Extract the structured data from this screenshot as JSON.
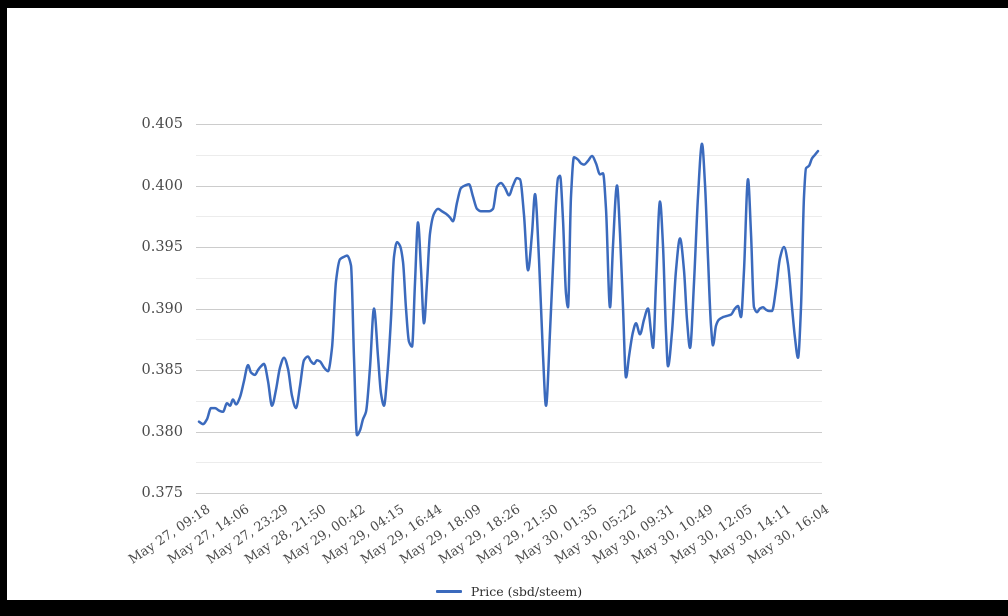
{
  "chart": {
    "y_axis_labels": [
      "0.405",
      "0.400",
      "0.395",
      "0.390",
      "0.385",
      "0.380",
      "0.375"
    ],
    "x_axis_labels": [
      "May 27, 09:18",
      "May 27, 14:06",
      "May 27, 23:29",
      "May 28, 21:50",
      "May 29, 00:42",
      "May 29, 04:15",
      "May 29, 16:44",
      "May 29, 18:09",
      "May 29, 18:26",
      "May 29, 21:50",
      "May 30, 01:35",
      "May 30, 05:22",
      "May 30, 09:31",
      "May 30, 10:49",
      "May 30, 12:05",
      "May 30, 14:11",
      "May 30, 16:04"
    ],
    "legend": {
      "label": "Price (sbd/steem)"
    },
    "colors": {
      "line": "#3b6abd",
      "grid_major": "#cccccc",
      "grid_minor": "#ececec",
      "axis_text": "#4a4a4a",
      "legend_text": "#2e2e2e",
      "frame": "#000000",
      "background": "#ffffff"
    }
  },
  "chart_data": {
    "type": "line",
    "title": "",
    "xlabel": "",
    "ylabel": "",
    "ylim": [
      0.375,
      0.405
    ],
    "y_ticks": [
      0.375,
      0.3775,
      0.38,
      0.3825,
      0.385,
      0.3875,
      0.39,
      0.3925,
      0.395,
      0.3975,
      0.4,
      0.4025,
      0.405
    ],
    "grid": "horizontal, major+minor",
    "legend_position": "bottom-center",
    "x_tick_labels": [
      "May 27, 09:18",
      "May 27, 14:06",
      "May 27, 23:29",
      "May 28, 21:50",
      "May 29, 00:42",
      "May 29, 04:15",
      "May 29, 16:44",
      "May 29, 18:09",
      "May 29, 18:26",
      "May 29, 21:50",
      "May 30, 01:35",
      "May 30, 05:22",
      "May 30, 09:31",
      "May 30, 10:49",
      "May 30, 12:05",
      "May 30, 14:11",
      "May 30, 16:04"
    ],
    "series": [
      {
        "name": "Price (sbd/steem)",
        "color": "#3b6abd",
        "points": [
          [
            199,
            0.3808
          ],
          [
            203,
            0.3806
          ],
          [
            207,
            0.381
          ],
          [
            211,
            0.3819
          ],
          [
            215,
            0.3819
          ],
          [
            219,
            0.3817
          ],
          [
            223,
            0.3816
          ],
          [
            227,
            0.3823
          ],
          [
            230,
            0.3821
          ],
          [
            233,
            0.3826
          ],
          [
            236,
            0.3822
          ],
          [
            240,
            0.3828
          ],
          [
            244,
            0.3841
          ],
          [
            248,
            0.3854
          ],
          [
            251,
            0.3848
          ],
          [
            255,
            0.3846
          ],
          [
            258,
            0.385
          ],
          [
            261,
            0.3853
          ],
          [
            264,
            0.3855
          ],
          [
            268,
            0.3841
          ],
          [
            272,
            0.3821
          ],
          [
            276,
            0.3834
          ],
          [
            280,
            0.3852
          ],
          [
            284,
            0.386
          ],
          [
            288,
            0.3851
          ],
          [
            292,
            0.3829
          ],
          [
            296,
            0.3819
          ],
          [
            300,
            0.3837
          ],
          [
            304,
            0.3858
          ],
          [
            308,
            0.3861
          ],
          [
            311,
            0.3857
          ],
          [
            314,
            0.3855
          ],
          [
            317,
            0.3858
          ],
          [
            320,
            0.3857
          ],
          [
            324,
            0.3852
          ],
          [
            328,
            0.3849
          ],
          [
            332,
            0.3868
          ],
          [
            336,
            0.3922
          ],
          [
            340,
            0.394
          ],
          [
            344,
            0.3942
          ],
          [
            347,
            0.3943
          ],
          [
            351,
            0.3935
          ],
          [
            354,
            0.386
          ],
          [
            357,
            0.3797
          ],
          [
            360,
            0.3801
          ],
          [
            363,
            0.381
          ],
          [
            366,
            0.3816
          ],
          [
            370,
            0.3852
          ],
          [
            374,
            0.39
          ],
          [
            378,
            0.3861
          ],
          [
            381,
            0.3831
          ],
          [
            384,
            0.3821
          ],
          [
            387,
            0.3843
          ],
          [
            391,
            0.3892
          ],
          [
            394,
            0.3942
          ],
          [
            397,
            0.3954
          ],
          [
            400,
            0.3951
          ],
          [
            403,
            0.3938
          ],
          [
            406,
            0.39
          ],
          [
            409,
            0.3873
          ],
          [
            412,
            0.3869
          ],
          [
            415,
            0.3921
          ],
          [
            418,
            0.397
          ],
          [
            421,
            0.3932
          ],
          [
            424,
            0.3888
          ],
          [
            427,
            0.3921
          ],
          [
            430,
            0.3961
          ],
          [
            434,
            0.3977
          ],
          [
            438,
            0.3981
          ],
          [
            442,
            0.3979
          ],
          [
            446,
            0.3977
          ],
          [
            450,
            0.3974
          ],
          [
            453,
            0.3971
          ],
          [
            457,
            0.3986
          ],
          [
            461,
            0.3998
          ],
          [
            465,
            0.4
          ],
          [
            469,
            0.4001
          ],
          [
            473,
            0.3991
          ],
          [
            477,
            0.3981
          ],
          [
            481,
            0.3979
          ],
          [
            485,
            0.3979
          ],
          [
            489,
            0.3979
          ],
          [
            493,
            0.3981
          ],
          [
            497,
            0.3999
          ],
          [
            501,
            0.4002
          ],
          [
            505,
            0.3998
          ],
          [
            509,
            0.3992
          ],
          [
            513,
            0.4
          ],
          [
            517,
            0.4006
          ],
          [
            520,
            0.4005
          ],
          [
            524,
            0.3976
          ],
          [
            528,
            0.3931
          ],
          [
            532,
            0.3961
          ],
          [
            535,
            0.3993
          ],
          [
            539,
            0.394
          ],
          [
            543,
            0.3862
          ],
          [
            546,
            0.3821
          ],
          [
            550,
            0.3881
          ],
          [
            554,
            0.3952
          ],
          [
            558,
            0.4006
          ],
          [
            560,
            0.4008
          ],
          [
            563,
            0.3972
          ],
          [
            566,
            0.3912
          ],
          [
            568,
            0.3901
          ],
          [
            571,
            0.3991
          ],
          [
            574,
            0.4023
          ],
          [
            578,
            0.4021
          ],
          [
            581,
            0.4018
          ],
          [
            584,
            0.4017
          ],
          [
            588,
            0.402
          ],
          [
            592,
            0.4024
          ],
          [
            596,
            0.4018
          ],
          [
            600,
            0.4009
          ],
          [
            603,
            0.401
          ],
          [
            606,
            0.3981
          ],
          [
            610,
            0.3901
          ],
          [
            613,
            0.3951
          ],
          [
            617,
            0.4
          ],
          [
            620,
            0.3961
          ],
          [
            623,
            0.3901
          ],
          [
            626,
            0.3844
          ],
          [
            629,
            0.3861
          ],
          [
            633,
            0.3881
          ],
          [
            636,
            0.3888
          ],
          [
            640,
            0.3879
          ],
          [
            644,
            0.3891
          ],
          [
            648,
            0.39
          ],
          [
            651,
            0.3881
          ],
          [
            653,
            0.3868
          ],
          [
            656,
            0.3921
          ],
          [
            660,
            0.3987
          ],
          [
            663,
            0.3951
          ],
          [
            666,
            0.3881
          ],
          [
            668,
            0.3853
          ],
          [
            672,
            0.3881
          ],
          [
            676,
            0.3931
          ],
          [
            680,
            0.3957
          ],
          [
            684,
            0.3931
          ],
          [
            687,
            0.3891
          ],
          [
            690,
            0.3868
          ],
          [
            694,
            0.3921
          ],
          [
            698,
            0.3991
          ],
          [
            702,
            0.4034
          ],
          [
            705,
            0.4001
          ],
          [
            708,
            0.3941
          ],
          [
            711,
            0.3886
          ],
          [
            713,
            0.387
          ],
          [
            716,
            0.3886
          ],
          [
            719,
            0.3891
          ],
          [
            723,
            0.3893
          ],
          [
            727,
            0.3894
          ],
          [
            731,
            0.3895
          ],
          [
            735,
            0.39
          ],
          [
            738,
            0.3902
          ],
          [
            741,
            0.3893
          ],
          [
            744,
            0.3931
          ],
          [
            748,
            0.4005
          ],
          [
            751,
            0.3961
          ],
          [
            754,
            0.3901
          ],
          [
            757,
            0.3897
          ],
          [
            760,
            0.39
          ],
          [
            763,
            0.3901
          ],
          [
            766,
            0.3899
          ],
          [
            769,
            0.3898
          ],
          [
            772,
            0.3898
          ],
          [
            776,
            0.3916
          ],
          [
            780,
            0.3941
          ],
          [
            784,
            0.395
          ],
          [
            788,
            0.3936
          ],
          [
            792,
            0.3901
          ],
          [
            795,
            0.3876
          ],
          [
            798,
            0.386
          ],
          [
            801,
            0.3901
          ],
          [
            804,
            0.3991
          ],
          [
            806,
            0.4014
          ],
          [
            809,
            0.4016
          ],
          [
            812,
            0.4022
          ],
          [
            815,
            0.4025
          ],
          [
            818,
            0.4028
          ]
        ]
      }
    ]
  }
}
